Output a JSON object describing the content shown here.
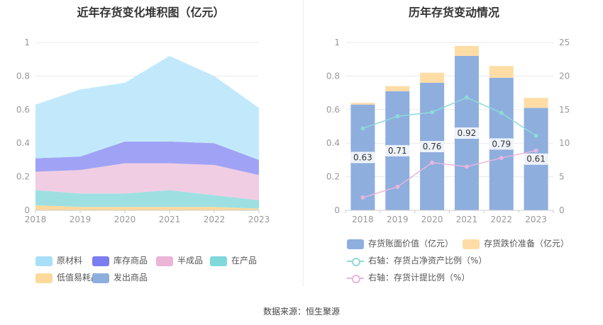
{
  "left_chart": {
    "title": "近年存货变化堆积图（亿元）"
  },
  "right_chart": {
    "title": "历年存货变动情况"
  },
  "source": "数据来源：恒生聚源",
  "chart_data": [
    {
      "type": "area",
      "stacked": true,
      "title": "近年存货变化堆积图（亿元）",
      "x": [
        "2018",
        "2019",
        "2020",
        "2021",
        "2022",
        "2023"
      ],
      "ylim": [
        0,
        1
      ],
      "yticks": [
        "0",
        "0.2",
        "0.4",
        "0.6",
        "0.8",
        "1"
      ],
      "grid": true,
      "legend_position": "bottom",
      "series": [
        {
          "name": "低值易耗品",
          "color": "#fdd99b",
          "values": [
            0.03,
            0.02,
            0.02,
            0.02,
            0.02,
            0.01
          ]
        },
        {
          "name": "在产品",
          "color": "#9ee0e2",
          "values": [
            0.09,
            0.08,
            0.08,
            0.1,
            0.07,
            0.05
          ]
        },
        {
          "name": "半成品",
          "color": "#f1cde3",
          "values": [
            0.11,
            0.14,
            0.18,
            0.16,
            0.18,
            0.15
          ]
        },
        {
          "name": "库存商品",
          "color": "#a0a3f5",
          "values": [
            0.08,
            0.08,
            0.13,
            0.13,
            0.13,
            0.09
          ]
        },
        {
          "name": "原材料",
          "color": "#c2e9fb",
          "values": [
            0.32,
            0.4,
            0.35,
            0.51,
            0.4,
            0.31
          ]
        },
        {
          "name": "发出商品",
          "color": "#8eaede",
          "values": [
            0,
            0,
            0,
            0,
            0,
            0
          ]
        }
      ],
      "legend_order": [
        {
          "name": "原材料",
          "color": "#a8dff8"
        },
        {
          "name": "库存商品",
          "color": "#7b7ef0"
        },
        {
          "name": "半成品",
          "color": "#ebb5d6"
        },
        {
          "name": "在产品",
          "color": "#7fd8da"
        },
        {
          "name": "低值易耗品",
          "color": "#fdd99b"
        },
        {
          "name": "发出商品",
          "color": "#8eaede"
        }
      ]
    },
    {
      "type": "bar",
      "title": "历年存货变动情况",
      "categories": [
        "2018",
        "2019",
        "2020",
        "2021",
        "2022",
        "2023"
      ],
      "ylim": [
        0,
        1
      ],
      "yticks": [
        "0",
        "0.2",
        "0.4",
        "0.6",
        "0.8",
        "1"
      ],
      "y2lim": [
        0,
        25
      ],
      "y2ticks": [
        "0",
        "5",
        "10",
        "15",
        "20",
        "25"
      ],
      "legend_position": "bottom",
      "series": [
        {
          "name": "存货账面价值（亿元）",
          "kind": "bar",
          "color": "#8eaede",
          "values": [
            0.63,
            0.71,
            0.76,
            0.92,
            0.79,
            0.61
          ],
          "labels": [
            "0.63",
            "0.71",
            "0.76",
            "0.92",
            "0.79",
            "0.61"
          ]
        },
        {
          "name": "存货跌价准备（亿元）",
          "kind": "bar",
          "color": "#fddca6",
          "values": [
            0.01,
            0.03,
            0.06,
            0.06,
            0.07,
            0.06
          ]
        },
        {
          "name": "右轴：存货占净资产比例（%）",
          "kind": "line",
          "axis": "right",
          "color": "#8fd9d9",
          "values": [
            12.2,
            14.0,
            14.6,
            16.8,
            14.5,
            11.1
          ]
        },
        {
          "name": "右轴：存货计提比例（%）",
          "kind": "line",
          "axis": "right",
          "color": "#e8b6dc",
          "values": [
            1.9,
            3.5,
            7.1,
            6.5,
            7.8,
            8.9
          ]
        }
      ]
    }
  ]
}
